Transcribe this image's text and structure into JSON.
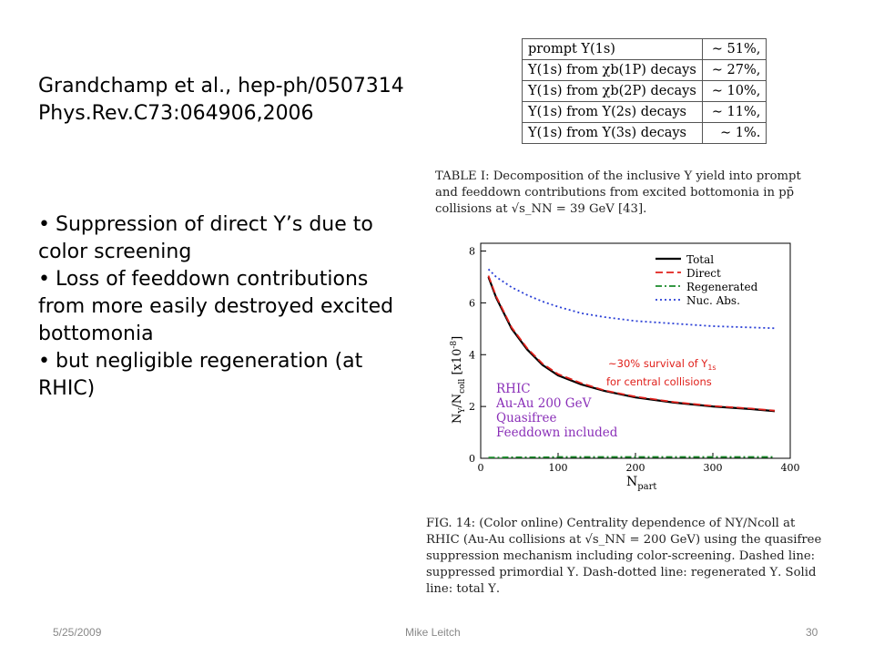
{
  "reference": {
    "line1": "Grandchamp et al., hep-ph/0507314",
    "line2": "Phys.Rev.C73:064906,2006"
  },
  "bullets": [
    "Suppression of direct Υ’s due to  color screening",
    "Loss of feeddown contributions from more easily destroyed excited bottomonia",
    "but negligible regeneration (at RHIC)"
  ],
  "table": {
    "rows": [
      {
        "label": "prompt Υ(1s)",
        "value": "∼ 51%,"
      },
      {
        "label": "Υ(1s) from χb(1P) decays",
        "value": "∼ 27%,"
      },
      {
        "label": "Υ(1s) from χb(2P) decays",
        "value": "∼ 10%,"
      },
      {
        "label": "Υ(1s) from Υ(2s) decays",
        "value": "∼ 11%,"
      },
      {
        "label": "Υ(1s) from Υ(3s) decays",
        "value": "∼ 1%."
      }
    ],
    "caption": "TABLE I: Decomposition of the inclusive Υ yield into prompt and feeddown contributions from excited bottomonia in pp̄ collisions at √s_NN = 39 GeV [43]."
  },
  "chart_data": {
    "type": "line",
    "xlabel": "N_part",
    "ylabel": "N_Υ/N_coll [x10^-8]",
    "xlim": [
      0,
      400
    ],
    "ylim": [
      0,
      8.3
    ],
    "xticks": [
      0,
      100,
      200,
      300,
      400
    ],
    "yticks": [
      0,
      2,
      4,
      6,
      8
    ],
    "x": [
      10,
      20,
      40,
      60,
      80,
      100,
      130,
      160,
      200,
      250,
      300,
      350,
      380
    ],
    "series": [
      {
        "name": "Total",
        "color": "#000000",
        "dash": "solid",
        "values": [
          7.0,
          6.2,
          5.0,
          4.2,
          3.6,
          3.2,
          2.85,
          2.6,
          2.35,
          2.15,
          2.0,
          1.9,
          1.82
        ]
      },
      {
        "name": "Direct",
        "color": "#e0201b",
        "dash": "dashed",
        "values": [
          7.05,
          6.25,
          5.05,
          4.25,
          3.65,
          3.25,
          2.9,
          2.62,
          2.38,
          2.17,
          2.02,
          1.92,
          1.84
        ]
      },
      {
        "name": "Regenerated",
        "color": "#1a8a2a",
        "dash": "dashdot",
        "values": [
          0.03,
          0.03,
          0.04,
          0.04,
          0.04,
          0.05,
          0.05,
          0.05,
          0.05,
          0.05,
          0.05,
          0.05,
          0.05
        ]
      },
      {
        "name": "Nuc. Abs.",
        "color": "#2a3fd6",
        "dash": "dotted",
        "values": [
          7.3,
          7.0,
          6.6,
          6.3,
          6.05,
          5.85,
          5.6,
          5.45,
          5.3,
          5.2,
          5.1,
          5.05,
          5.02
        ]
      }
    ],
    "legend_position": "top-right",
    "inset_text": [
      "RHIC",
      "Au-Au 200 GeV",
      "Quasifree",
      "Feeddown included"
    ],
    "inset_color": "#8a2fb8",
    "annotation": {
      "line1": "~30% survival  of Υ",
      "sub": "1s",
      "line2": "for central collisions",
      "color": "#e0201b"
    }
  },
  "figure_caption": "FIG. 14:  (Color online)  Centrality dependence of NΥ/Ncoll at RHIC (Au-Au collisions at √s_NN = 200 GeV) using the quasifree suppression mechanism including color-screening. Dashed line: suppressed primordial Υ. Dash-dotted line: regenerated Υ. Solid line: total Υ.",
  "footer": {
    "date": "5/25/2009",
    "author": "Mike Leitch",
    "page": "30"
  }
}
